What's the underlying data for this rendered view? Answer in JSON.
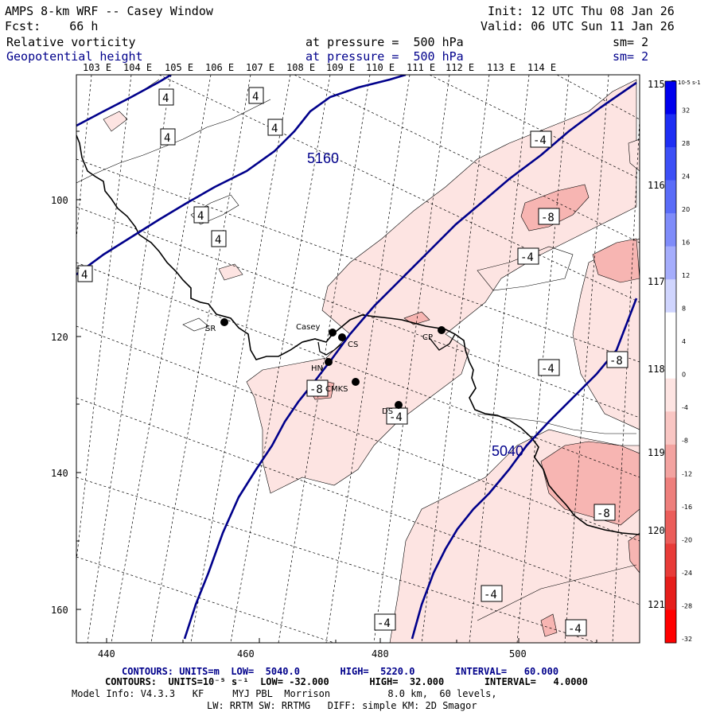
{
  "header": {
    "title": "AMPS 8-km WRF -- Casey Window",
    "init": "Init: 12 UTC Thu 08 Jan 26",
    "fcst": "Fcst:    66 h",
    "valid": "Valid: 06 UTC Sun 11 Jan 26",
    "field1": "Relative vorticity",
    "field1_level": "at pressure =  500 hPa",
    "field1_sm": "sm= 2",
    "field2": "Geopotential height",
    "field2_level": "at pressure =  500 hPa",
    "field2_sm": "sm= 2"
  },
  "map": {
    "lon_labels_top": [
      "103 E",
      "104 E",
      "105 E",
      "106 E",
      "107 E",
      "108 E",
      "109 E",
      "110 E",
      "111 E",
      "112 E",
      "113 E",
      "114 E"
    ],
    "lon_labels_right": [
      "115 E",
      "116 E",
      "117 E",
      "118 E",
      "119 E",
      "120 E",
      "121 E"
    ],
    "x_ticks": [
      "440",
      "460",
      "480",
      "500"
    ],
    "y_ticks": [
      "100",
      "120",
      "140",
      "160"
    ],
    "height_contour_labels": [
      "5160",
      "5040"
    ],
    "vorticity_labels": {
      "positive": [
        "4",
        "4",
        "4",
        "4",
        "4",
        "4",
        "4"
      ],
      "negative": [
        "-4",
        "-8",
        "-4",
        "-4",
        "-8",
        "-8",
        "-4",
        "-4",
        "-4",
        "-8",
        "-4",
        "-4",
        "-4"
      ]
    },
    "stations": [
      {
        "name": "SR"
      },
      {
        "name": "Casey"
      },
      {
        "name": "CS"
      },
      {
        "name": "CP"
      },
      {
        "name": "HN"
      },
      {
        "name": "CMKS"
      },
      {
        "name": "DS"
      }
    ],
    "colors": {
      "height_contour": "#00008b",
      "coast": "#000000",
      "neg_light": "#fde4e2",
      "neg_medium": "#f7b5b2",
      "neg_strong": "#ef8f8c"
    }
  },
  "colorbar": {
    "unit": "10-5 s-1",
    "labels": [
      "32",
      "28",
      "24",
      "20",
      "16",
      "12",
      "8",
      "4",
      "0",
      "-4",
      "-8",
      "-12",
      "-16",
      "-20",
      "-24",
      "-28",
      "-32"
    ],
    "colors": [
      "#0000ee",
      "#1e2ef4",
      "#3c4ff6",
      "#5a6cf8",
      "#7f8cfa",
      "#a5adfc",
      "#d0d5fe",
      "#ffffff",
      "#ffffff",
      "#fde4e2",
      "#f9c6c3",
      "#f3a3a0",
      "#ee7f7c",
      "#eb5d5a",
      "#e83b38",
      "#e61e1b",
      "#ff0000"
    ]
  },
  "footer": {
    "line1": "CONTOURS: UNITS=m  LOW=  5040.0       HIGH=  5220.0       INTERVAL=   60.000",
    "line2": "CONTOURS:  UNITS=10⁻⁵ s⁻¹  LOW= -32.000       HIGH=  32.000       INTERVAL=   4.0000",
    "line3": "Model Info: V4.3.3   KF     MYJ PBL  Morrison          8.0 km,  60 levels,",
    "line4": "LW: RRTM SW: RRTMG   DIFF: simple KM: 2D Smagor"
  }
}
